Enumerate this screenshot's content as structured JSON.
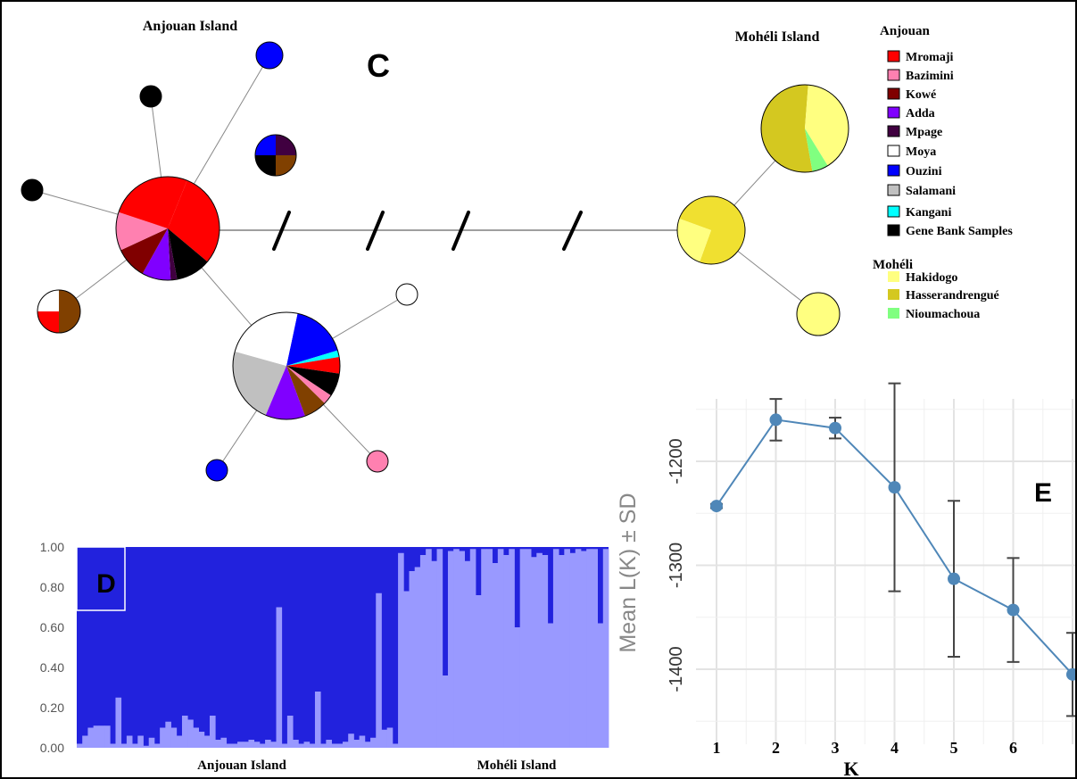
{
  "network": {
    "anjouan_title": "Anjouan Island",
    "moheli_title": "Mohéli Island",
    "panel_label": "C",
    "colors": {
      "Mromaji": "#ff0000",
      "Bazimini": "#ff80b0",
      "Kowe": "#800000",
      "Adda": "#8000ff",
      "Mpage": "#400040",
      "Moya": "#ffffff",
      "Ouzini": "#0000ff",
      "Salamani": "#c0c0c0",
      "Kangani": "#00ffff",
      "GeneBank": "#000000",
      "Brown": "#804000",
      "Hakidogo": "#ffff80",
      "Hasserandrengue": "#d4c820",
      "Nioumachoua": "#80ff80",
      "Yellow": "#f0e030"
    }
  },
  "legend": {
    "anjouan_header": "Anjouan",
    "anjouan_items": [
      {
        "label": "Mromaji",
        "color": "#ff0000"
      },
      {
        "label": "Bazimini",
        "color": "#ff80b0"
      },
      {
        "label": "Kowé",
        "color": "#800000"
      },
      {
        "label": "Adda",
        "color": "#8000ff"
      },
      {
        "label": "Mpage",
        "color": "#400040"
      },
      {
        "label": "Moya",
        "color": "#ffffff"
      },
      {
        "label": "Ouzini",
        "color": "#0000ff"
      },
      {
        "label": "Salamani",
        "color": "#c0c0c0"
      },
      {
        "label": "Kangani",
        "color": "#00ffff"
      },
      {
        "label": "Gene Bank Samples",
        "color": "#000000"
      }
    ],
    "moheli_header": "Mohéli",
    "moheli_items": [
      {
        "label": "Hakidogo",
        "color": "#ffff80"
      },
      {
        "label": "Hasserandrengué",
        "color": "#d4c820"
      },
      {
        "label": "Nioumachoua",
        "color": "#80ff80"
      }
    ]
  },
  "chart_data": [
    {
      "type": "bar",
      "panel_label": "D",
      "yticks": [
        "1.00",
        "0.80",
        "0.60",
        "0.40",
        "0.20",
        "0.00"
      ],
      "ylim": [
        0,
        1
      ],
      "groups": [
        "Anjouan Island",
        "Mohéli Island"
      ],
      "series": [
        {
          "color": "#9999ff",
          "values": [
            0.02,
            0.06,
            0.1,
            0.11,
            0.11,
            0.11,
            0.02,
            0.25,
            0.02,
            0.06,
            0.02,
            0.06,
            0.01,
            0.05,
            0.02,
            0.1,
            0.13,
            0.1,
            0.06,
            0.16,
            0.14,
            0.1,
            0.08,
            0.06,
            0.16,
            0.04,
            0.05,
            0.02,
            0.02,
            0.03,
            0.03,
            0.04,
            0.03,
            0.02,
            0.04,
            0.03,
            0.7,
            0.02,
            0.16,
            0.04,
            0.02,
            0.03,
            0.02,
            0.28,
            0.02,
            0.04,
            0.02,
            0.02,
            0.03,
            0.07,
            0.04,
            0.06,
            0.03,
            0.05,
            0.77,
            0.09,
            0.1,
            0.02,
            0.97,
            0.78,
            0.88,
            0.9,
            0.96,
            0.99,
            0.93,
            0.99,
            0.36,
            0.98,
            0.99,
            0.98,
            0.93,
            0.99,
            0.76,
            0.99,
            0.99,
            0.92,
            0.99,
            0.96,
            0.99,
            0.6,
            0.99,
            0.99,
            0.95,
            0.97,
            0.96,
            0.62,
            0.99,
            0.96,
            0.99,
            0.97,
            0.99,
            0.98,
            0.99,
            0.99,
            0.62,
            0.99
          ]
        },
        {
          "color": "#2222dd",
          "values": "1 minus first series"
        }
      ],
      "n_anjouan": 58
    },
    {
      "type": "line",
      "panel_label": "E",
      "xlabel": "K",
      "ylabel": "Mean L(K) ± SD",
      "x": [
        1,
        2,
        3,
        4,
        5,
        6,
        7
      ],
      "xticks": [
        "1",
        "2",
        "3",
        "4",
        "5",
        "6"
      ],
      "y": [
        -1243,
        -1160,
        -1168,
        -1225,
        -1313,
        -1343,
        -1405
      ],
      "sd": [
        2,
        20,
        10,
        100,
        75,
        50,
        40
      ],
      "ylim": [
        -1460,
        -1140
      ],
      "yticks": [
        "-1200",
        "-1300",
        "-1400"
      ],
      "grid": true,
      "color": "#4f87b8"
    }
  ],
  "bottom_labels": {
    "anjouan": "Anjouan Island",
    "moheli": "Mohéli Island"
  }
}
